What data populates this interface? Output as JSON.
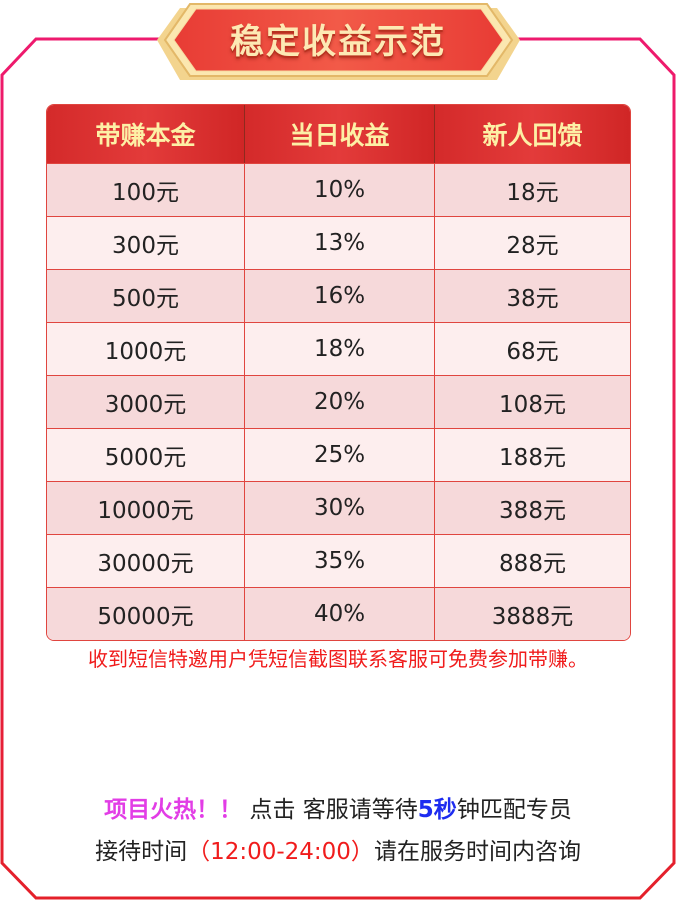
{
  "title": "稳定收益示范",
  "colors": {
    "frame_top": "#ee1a6e",
    "frame_bottom": "#e4202a",
    "header_bg": "#d92d2d",
    "header_text": "#fdf0a6",
    "row_odd": "#f6d9da",
    "row_even": "#fdeeee",
    "notice": "#f01c1c",
    "hot": "#e23de6",
    "highlight_blue": "#1d2cf0"
  },
  "table": {
    "headers": [
      "带赚本金",
      "当日收益",
      "新人回馈"
    ],
    "rows": [
      [
        "100元",
        "10%",
        "18元"
      ],
      [
        "300元",
        "13%",
        "28元"
      ],
      [
        "500元",
        "16%",
        "38元"
      ],
      [
        "1000元",
        "18%",
        "68元"
      ],
      [
        "3000元",
        "20%",
        "108元"
      ],
      [
        "5000元",
        "25%",
        "188元"
      ],
      [
        "10000元",
        "30%",
        "388元"
      ],
      [
        "30000元",
        "35%",
        "888元"
      ],
      [
        "50000元",
        "40%",
        "3888元"
      ]
    ]
  },
  "notice": "收到短信特邀用户凭短信截图联系客服可免费参加带赚。",
  "footer": {
    "hot": "项目火热！！",
    "click": " 点击 ",
    "service": "客服请等待",
    "seconds": "5秒",
    "match": "钟匹配专员",
    "hours_label": "接待时间",
    "hours": "（12:00-24:00）",
    "hours_tail": "请在服务时间内咨询"
  }
}
